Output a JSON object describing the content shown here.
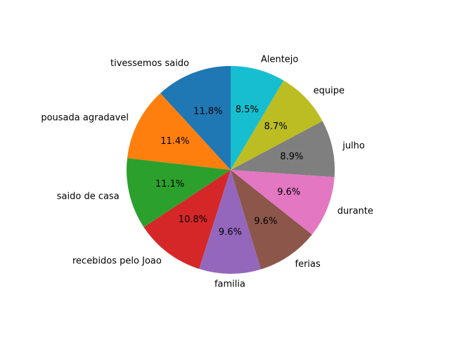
{
  "chart_data": {
    "type": "pie",
    "title": "",
    "start_angle_deg": 90,
    "direction": "counterclockwise",
    "slices": [
      {
        "label": "tivessemos saido",
        "value": 11.8,
        "pct_label": "11.8%",
        "color": "#1f77b4"
      },
      {
        "label": "pousada agradavel",
        "value": 11.4,
        "pct_label": "11.4%",
        "color": "#ff7f0e"
      },
      {
        "label": "saido de casa",
        "value": 11.1,
        "pct_label": "11.1%",
        "color": "#2ca02c"
      },
      {
        "label": "recebidos pelo Joao",
        "value": 10.8,
        "pct_label": "10.8%",
        "color": "#d62728"
      },
      {
        "label": "familia",
        "value": 9.6,
        "pct_label": "9.6%",
        "color": "#9467bd"
      },
      {
        "label": "ferias",
        "value": 9.6,
        "pct_label": "9.6%",
        "color": "#8c564b"
      },
      {
        "label": "durante",
        "value": 9.6,
        "pct_label": "9.6%",
        "color": "#e377c2"
      },
      {
        "label": "julho",
        "value": 8.9,
        "pct_label": "8.9%",
        "color": "#7f7f7f"
      },
      {
        "label": "equipe",
        "value": 8.7,
        "pct_label": "8.7%",
        "color": "#bcbd22"
      },
      {
        "label": "Alentejo",
        "value": 8.5,
        "pct_label": "8.5%",
        "color": "#17becf"
      }
    ]
  }
}
